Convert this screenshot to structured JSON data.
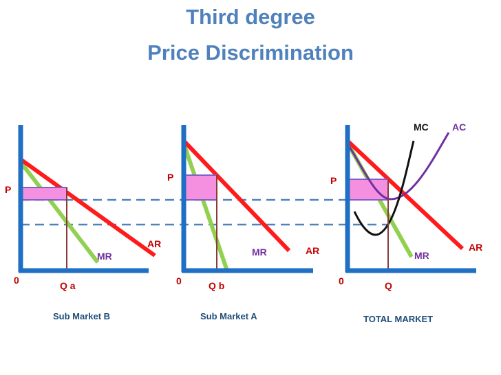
{
  "title": {
    "line1": "Third degree",
    "line2": "Price Discrimination"
  },
  "colors": {
    "title": "#4F81BD",
    "axis": "#1F6FC5",
    "ar": "#FF1B1B",
    "mr": "#92D050",
    "mc": "#111111",
    "ac": "#7030A0",
    "box_fill": "#F58FE0",
    "box_stroke": "#7F60C8",
    "guide": "#8B3A3A",
    "dash": "#4F81BD",
    "label_red": "#C00000",
    "label_purple": "#7030A0",
    "label_blue": "#1F4E79"
  },
  "panels": [
    {
      "caption": "Sub Market B",
      "origin": "0",
      "quantity": "Q a",
      "price": "P",
      "ar": "AR",
      "mr": "MR"
    },
    {
      "caption": "Sub Market A",
      "origin": "0",
      "quantity": "Q b",
      "price": "P",
      "ar": "AR",
      "mr": "MR"
    },
    {
      "caption": "TOTAL MARKET",
      "origin": "0",
      "quantity": "Q",
      "price": "P",
      "ar": "AR",
      "mr": "MR",
      "mc": "MC",
      "ac": "AC"
    }
  ]
}
